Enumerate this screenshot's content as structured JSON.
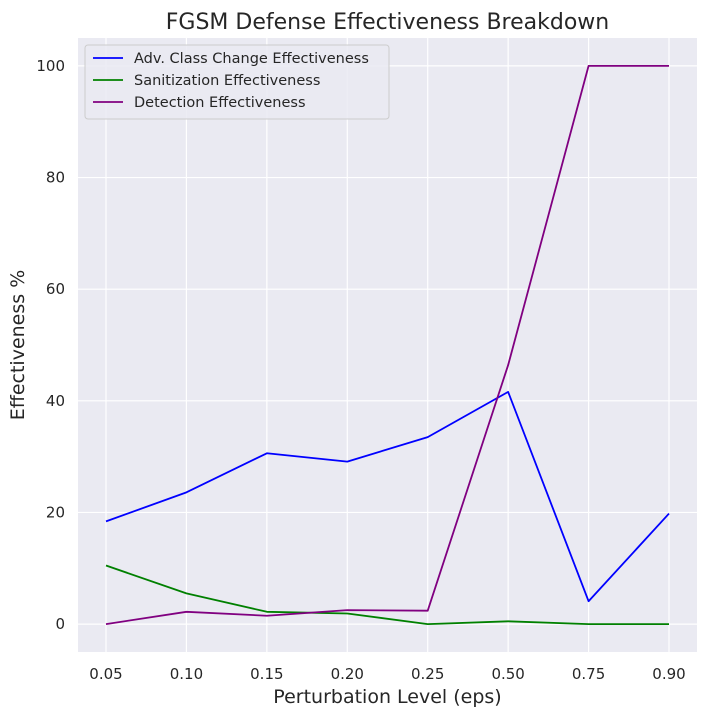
{
  "chart_data": {
    "type": "line",
    "title": "FGSM Defense Effectiveness Breakdown",
    "xlabel": "Perturbation Level (eps)",
    "ylabel": "Effectiveness %",
    "categories": [
      "0.05",
      "0.10",
      "0.15",
      "0.20",
      "0.25",
      "0.50",
      "0.75",
      "0.90"
    ],
    "ylim": [
      -5,
      105
    ],
    "yticks": [
      0,
      20,
      40,
      60,
      80,
      100
    ],
    "grid": true,
    "legend_position": "top-left",
    "series": [
      {
        "name": "Adv. Class Change Effectiveness",
        "color": "#0000ff",
        "values": [
          18.4,
          23.6,
          30.6,
          29.1,
          33.5,
          41.6,
          4.1,
          19.8
        ]
      },
      {
        "name": "Sanitization Effectiveness",
        "color": "#008000",
        "values": [
          10.5,
          5.5,
          2.2,
          1.9,
          0.0,
          0.5,
          0.0,
          0.0
        ]
      },
      {
        "name": "Detection Effectiveness",
        "color": "#800080",
        "values": [
          0.0,
          2.2,
          1.5,
          2.5,
          2.4,
          46.4,
          100.0,
          100.0
        ]
      }
    ]
  }
}
